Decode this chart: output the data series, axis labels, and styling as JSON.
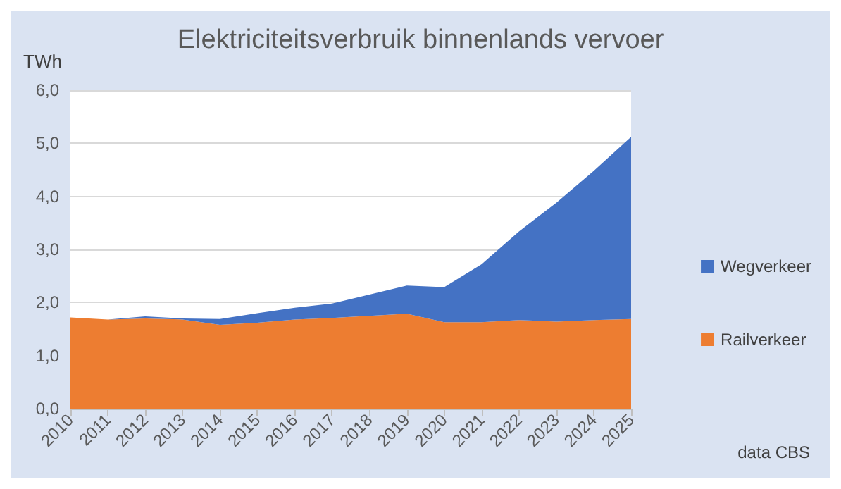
{
  "chart_data": {
    "type": "area",
    "title": "Elektriciteitsverbruik binnenlands vervoer",
    "ylabel": "TWh",
    "stacked": true,
    "categories": [
      "2010",
      "2011",
      "2012",
      "2013",
      "2014",
      "2015",
      "2016",
      "2017",
      "2018",
      "2019",
      "2020",
      "2021",
      "2022",
      "2023",
      "2024",
      "2025"
    ],
    "series": [
      {
        "name": "Railverkeer",
        "color": "#ed7d31",
        "values": [
          1.72,
          1.68,
          1.7,
          1.68,
          1.58,
          1.62,
          1.68,
          1.71,
          1.75,
          1.79,
          1.63,
          1.63,
          1.67,
          1.64,
          1.67,
          1.69
        ]
      },
      {
        "name": "Wegverkeer",
        "color": "#4472c4",
        "values": [
          0,
          0,
          0.04,
          0.02,
          0.11,
          0.18,
          0.22,
          0.27,
          0.4,
          0.53,
          0.66,
          1.09,
          1.67,
          2.24,
          2.81,
          3.43
        ]
      }
    ],
    "ylim": [
      0,
      6
    ],
    "yticks": [
      {
        "value": 0,
        "label": "0,0"
      },
      {
        "value": 1,
        "label": "1,0"
      },
      {
        "value": 2,
        "label": "2,0"
      },
      {
        "value": 3,
        "label": "3,0"
      },
      {
        "value": 4,
        "label": "4,0"
      },
      {
        "value": 5,
        "label": "5,0"
      },
      {
        "value": 6,
        "label": "6,0"
      }
    ],
    "grid": "y",
    "legend": "right",
    "annotations": [
      "data CBS"
    ]
  }
}
